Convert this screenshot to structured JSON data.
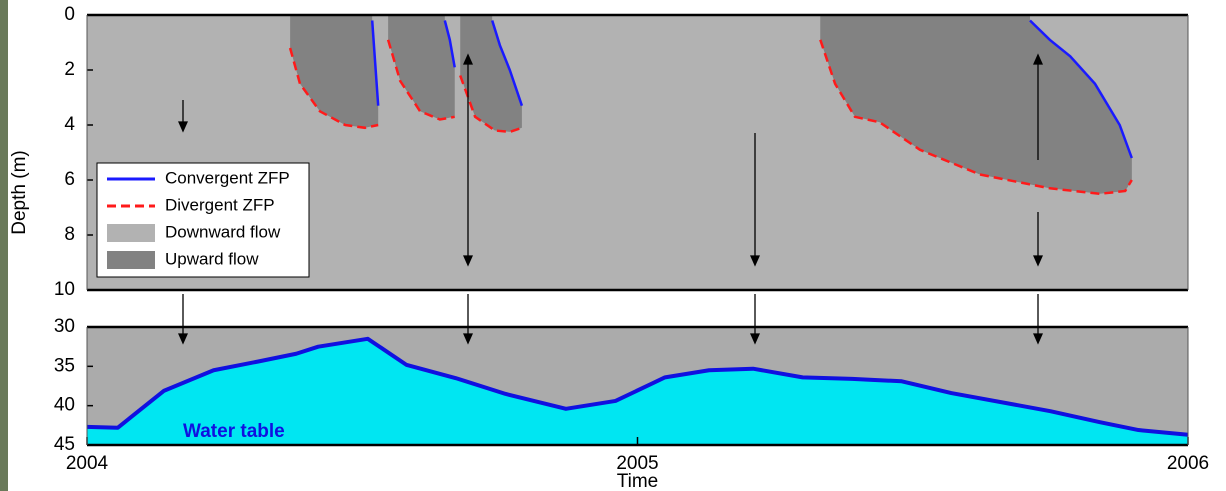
{
  "chart_data": [
    {
      "type": "area",
      "ylabel": "Depth (m)",
      "ylim": [
        0,
        10
      ],
      "yticks": [
        0,
        2,
        4,
        6,
        8,
        10
      ],
      "y_inverted": true,
      "xlim": [
        2004,
        2006
      ],
      "legend": "lower left",
      "series": [
        {
          "name": "Convergent ZFP",
          "color": "#1a1aff",
          "style": "solid",
          "x": [
            2004.529,
            2004.523,
            2004.518,
            null,
            2004.668,
            2004.659,
            2004.65,
            null,
            2004.79,
            2004.768,
            2004.75,
            2004.736,
            null,
            2005.898,
            2005.876,
            2005.831,
            2005.786,
            2005.749,
            2005.713
          ],
          "values": [
            3.3,
            1.6,
            0.2,
            null,
            1.9,
            0.9,
            0.2,
            null,
            3.3,
            2.0,
            1.1,
            0.2,
            null,
            5.2,
            4.0,
            2.5,
            1.5,
            0.9,
            0.2
          ]
        },
        {
          "name": "Divergent ZFP",
          "color": "#ff1a1a",
          "style": "dashed",
          "x": [
            2004.369,
            2004.387,
            2004.423,
            2004.469,
            2004.505,
            2004.529,
            null,
            2004.547,
            2004.569,
            2004.605,
            2004.641,
            2004.668,
            null,
            2004.678,
            2004.705,
            2004.741,
            2004.768,
            2004.79,
            null,
            2005.332,
            2005.359,
            2005.395,
            2005.44,
            2005.513,
            2005.622,
            2005.749,
            2005.84,
            2005.886,
            2005.898
          ],
          "values": [
            1.2,
            2.5,
            3.5,
            4.0,
            4.1,
            4.0,
            null,
            0.9,
            2.4,
            3.5,
            3.8,
            3.7,
            null,
            2.2,
            3.7,
            4.2,
            4.25,
            4.1,
            null,
            0.9,
            2.5,
            3.7,
            3.9,
            4.9,
            5.8,
            6.3,
            6.5,
            6.4,
            6.0
          ]
        },
        {
          "name": "Downward flow",
          "color": "#b2b2b2"
        },
        {
          "name": "Upward flow",
          "color": "#828282"
        }
      ]
    },
    {
      "type": "area",
      "ylim": [
        30,
        45
      ],
      "yticks": [
        30,
        35,
        40,
        45
      ],
      "y_inverted": true,
      "xlim": [
        2004,
        2006
      ],
      "xticks": [
        2004,
        2005,
        2006
      ],
      "xlabel": "Time",
      "background": "#ababab",
      "series": [
        {
          "name": "Water table",
          "color": "#1010e0",
          "fill": "#00e6f2",
          "x": [
            2004.0,
            2004.056,
            2004.14,
            2004.23,
            2004.31,
            2004.38,
            2004.42,
            2004.51,
            2004.58,
            2004.67,
            2004.76,
            2004.87,
            2004.96,
            2005.05,
            2005.13,
            2005.21,
            2005.3,
            2005.39,
            2005.48,
            2005.57,
            2005.75,
            2005.84,
            2005.91,
            2006.0
          ],
          "values": [
            42.7,
            42.8,
            38.1,
            35.5,
            34.4,
            33.4,
            32.5,
            31.5,
            34.8,
            36.5,
            38.5,
            40.4,
            39.4,
            36.4,
            35.5,
            35.3,
            36.4,
            36.6,
            36.9,
            38.4,
            40.7,
            42.1,
            43.1,
            43.7
          ]
        }
      ]
    }
  ]
}
